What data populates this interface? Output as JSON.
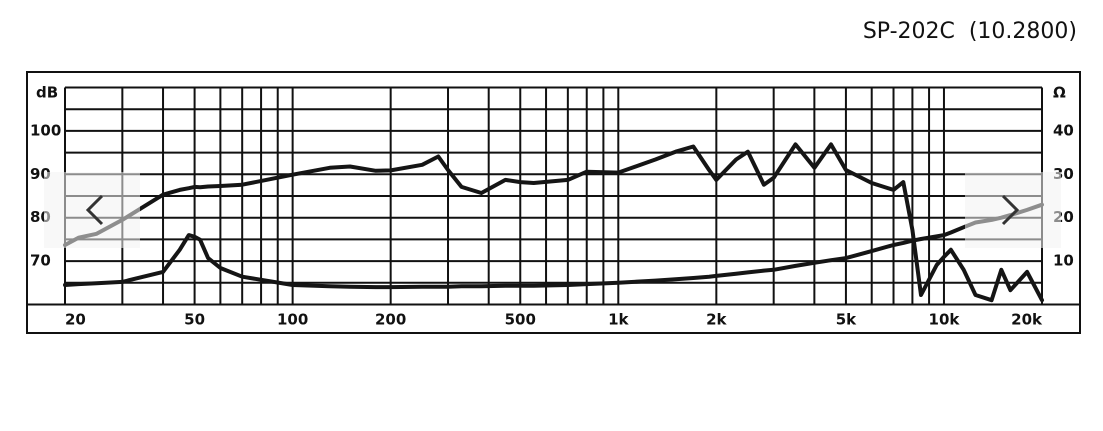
{
  "chart_data": {
    "type": "line",
    "title": "SP-202C  (10.2800)",
    "ylabel": "dB",
    "y2label": "Ω",
    "log_x": true,
    "grid": true,
    "xlim": [
      20,
      20000
    ],
    "xticks": [
      20,
      50,
      100,
      200,
      500,
      {
        "value": 1000,
        "label": "1k"
      },
      {
        "value": 2000,
        "label": "2k"
      },
      {
        "value": 5000,
        "label": "5k"
      },
      {
        "value": 10000,
        "label": "10k"
      },
      {
        "value": 20000,
        "label": "20k"
      }
    ],
    "xminor": [
      30,
      40,
      60,
      70,
      80,
      90,
      300,
      400,
      600,
      700,
      800,
      900,
      3000,
      4000,
      6000,
      7000,
      8000,
      9000
    ],
    "ylim": [
      60,
      110
    ],
    "yticks": [
      70,
      80,
      90,
      100
    ],
    "yminor": [
      65,
      75,
      85,
      95,
      105
    ],
    "y2lim": [
      0,
      50
    ],
    "y2ticks": [
      10,
      20,
      30,
      40
    ],
    "x": [
      20,
      22,
      25,
      30,
      40,
      45,
      48,
      50,
      52,
      55,
      60,
      70,
      100,
      130,
      150,
      180,
      200,
      250,
      280,
      300,
      330,
      380,
      450,
      500,
      550,
      700,
      800,
      1000,
      1300,
      1500,
      1700,
      1900,
      2000,
      2300,
      2500,
      2800,
      3000,
      3500,
      4000,
      4500,
      5000,
      6000,
      7000,
      7500,
      8000,
      8500,
      9500,
      10000,
      10500,
      11500,
      12500,
      14000,
      15000,
      16000,
      18000,
      20000
    ],
    "series": [
      {
        "color": "#151515",
        "values": [
          73.7,
          75.4,
          76.3,
          79.5,
          85.3,
          86.4,
          86.8,
          87.1,
          87.0,
          87.2,
          87.3,
          87.6,
          89.9,
          91.5,
          91.8,
          90.8,
          90.9,
          92.2,
          94.1,
          91,
          87.1,
          85.7,
          88.7,
          88.2,
          88,
          88.7,
          90.6,
          90.4,
          93.4,
          95.2,
          96.4,
          91,
          88.7,
          93.4,
          95.2,
          87.6,
          89.2,
          96.9,
          91.5,
          96.9,
          91,
          88,
          86.4,
          88.2,
          77.2,
          62.2,
          69.1,
          71,
          72.6,
          68,
          62.2,
          61,
          68,
          63.3,
          67.5,
          61
        ]
      },
      {
        "color": "#151515",
        "axis": "y2",
        "values": [
          4.5,
          4.7,
          4.9,
          5.2,
          7.5,
          12.6,
          16,
          15.6,
          14.9,
          10.7,
          8.4,
          6.4,
          4.5,
          4.2,
          4.1,
          4.0,
          4.0,
          4.1,
          4.1,
          4.1,
          4.2,
          4.2,
          4.3,
          4.3,
          4.3,
          4.5,
          4.7,
          5,
          5.5,
          5.8,
          6.1,
          6.4,
          6.6,
          7.1,
          7.4,
          7.8,
          8,
          8.9,
          9.6,
          10.2,
          10.7,
          12.3,
          13.7,
          14.2,
          14.7,
          15.1,
          15.7,
          16,
          16.6,
          17.8,
          18.9,
          19.5,
          20,
          20.6,
          21.8,
          23
        ]
      }
    ]
  }
}
